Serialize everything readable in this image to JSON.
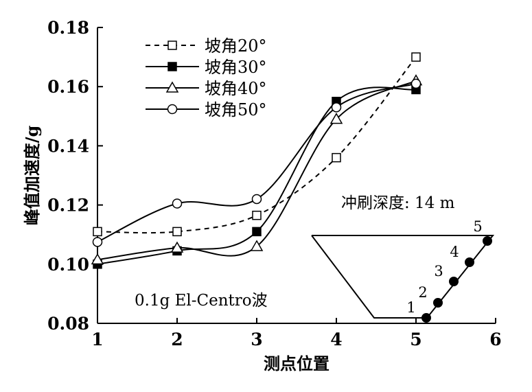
{
  "chart_data": {
    "type": "line",
    "title": "",
    "xlabel": "测点位置",
    "ylabel": "峰值加速度/g",
    "xlim": [
      1,
      6
    ],
    "ylim": [
      0.08,
      0.18
    ],
    "xticks": [
      "1",
      "2",
      "3",
      "4",
      "5",
      "6"
    ],
    "yticks": [
      "0.08",
      "0.10",
      "0.12",
      "0.14",
      "0.16",
      "0.18"
    ],
    "grid": false,
    "legend_position": "top-left",
    "x": [
      1,
      2,
      3,
      4,
      5
    ],
    "series": [
      {
        "name": "坡角20°",
        "marker": "open-square",
        "line": "dashed",
        "values": [
          0.111,
          0.111,
          0.1165,
          0.136,
          0.17
        ]
      },
      {
        "name": "坡角30°",
        "marker": "filled-square",
        "line": "solid",
        "values": [
          0.1,
          0.1045,
          0.111,
          0.155,
          0.159
        ]
      },
      {
        "name": "坡角40°",
        "marker": "open-triangle",
        "line": "solid",
        "values": [
          0.1015,
          0.1055,
          0.106,
          0.149,
          0.162
        ]
      },
      {
        "name": "坡角50°",
        "marker": "open-circle",
        "line": "solid",
        "values": [
          0.1075,
          0.1205,
          0.122,
          0.153,
          0.161
        ]
      }
    ],
    "annotations": {
      "wave": "0.1g El-Centro波",
      "scour_depth": "冲刷深度: 14 m",
      "point_labels": [
        "1",
        "2",
        "3",
        "4",
        "5"
      ]
    }
  }
}
